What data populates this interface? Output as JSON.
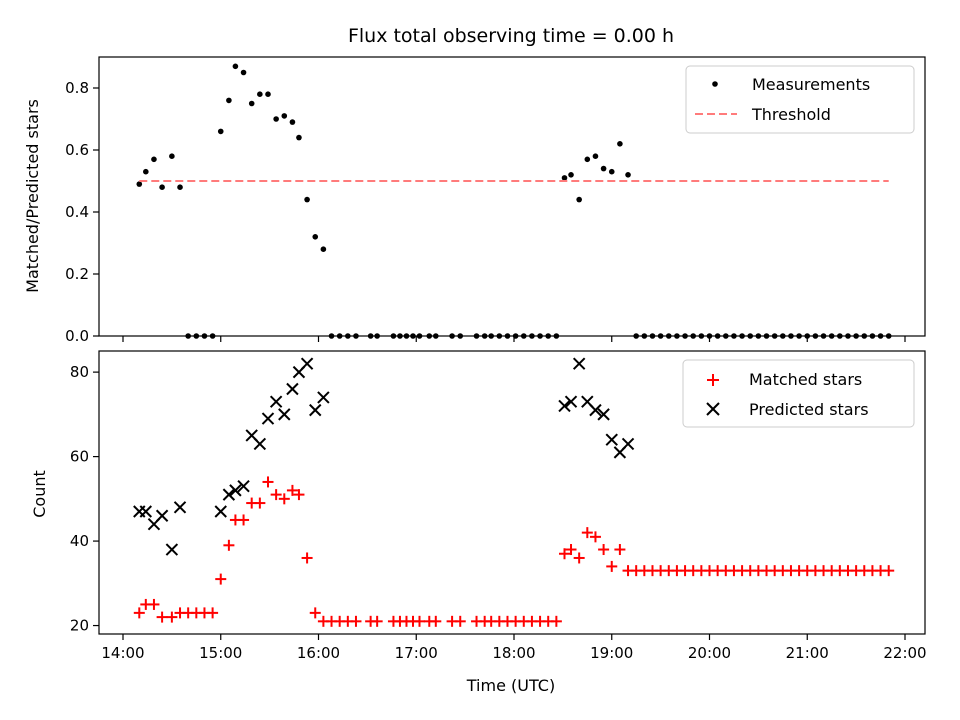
{
  "chart_data": [
    {
      "type": "scatter",
      "title": "Flux total observing time = 0.00 h",
      "ylabel": "Matched/Predicted stars",
      "xlabel": "",
      "xlim": [
        "14:00",
        "22:00"
      ],
      "ylim": [
        0,
        0.9
      ],
      "ytick_values": [
        0.0,
        0.2,
        0.4,
        0.6,
        0.8
      ],
      "ytick_labels": [
        "0.0",
        "0.2",
        "0.4",
        "0.6",
        "0.8"
      ],
      "grid": false,
      "legend_position": "top-right",
      "series": [
        {
          "name": "Measurements",
          "kind": "scatter",
          "marker": "dot",
          "color": "#000000",
          "x": [
            "14:10",
            "14:14",
            "14:19",
            "14:24",
            "14:30",
            "14:35",
            "14:40",
            "14:45",
            "14:50",
            "14:55",
            "15:00",
            "15:05",
            "15:09",
            "15:14",
            "15:19",
            "15:24",
            "15:29",
            "15:34",
            "15:39",
            "15:44",
            "15:48",
            "15:53",
            "15:58",
            "16:03",
            "16:08",
            "16:13",
            "16:18",
            "16:23",
            "16:32",
            "16:36",
            "16:46",
            "16:50",
            "16:54",
            "16:58",
            "17:02",
            "17:08",
            "17:12",
            "17:22",
            "17:27",
            "17:37",
            "17:42",
            "17:46",
            "17:51",
            "17:56",
            "18:01",
            "18:06",
            "18:11",
            "18:16",
            "18:21",
            "18:26",
            "18:31",
            "18:35",
            "18:40",
            "18:45",
            "18:50",
            "18:55",
            "19:00",
            "19:05",
            "19:10",
            "19:15",
            "19:20",
            "19:25",
            "19:30",
            "19:35",
            "19:40",
            "19:45",
            "19:50",
            "19:55",
            "20:00",
            "20:05",
            "20:10",
            "20:15",
            "20:20",
            "20:25",
            "20:30",
            "20:35",
            "20:40",
            "20:45",
            "20:50",
            "20:55",
            "21:00",
            "21:05",
            "21:10",
            "21:15",
            "21:20",
            "21:25",
            "21:30",
            "21:35",
            "21:40",
            "21:45",
            "21:50"
          ],
          "y": [
            0.49,
            0.53,
            0.57,
            0.48,
            0.58,
            0.48,
            0,
            0,
            0,
            0,
            0.66,
            0.76,
            0.87,
            0.85,
            0.75,
            0.78,
            0.78,
            0.7,
            0.71,
            0.69,
            0.64,
            0.44,
            0.32,
            0.28,
            0,
            0,
            0,
            0,
            0,
            0,
            0,
            0,
            0,
            0,
            0,
            0,
            0,
            0,
            0,
            0,
            0,
            0,
            0,
            0,
            0,
            0,
            0,
            0,
            0,
            0,
            0.51,
            0.52,
            0.44,
            0.57,
            0.58,
            0.54,
            0.53,
            0.62,
            0.52,
            0,
            0,
            0,
            0,
            0,
            0,
            0,
            0,
            0,
            0,
            0,
            0,
            0,
            0,
            0,
            0,
            0,
            0,
            0,
            0,
            0,
            0,
            0,
            0,
            0,
            0,
            0,
            0,
            0,
            0,
            0,
            0
          ]
        },
        {
          "name": "Threshold",
          "kind": "line",
          "style": "dashed",
          "color": "#ff7b7b",
          "x": [
            "14:10",
            "21:50"
          ],
          "y": [
            0.5,
            0.5
          ]
        }
      ]
    },
    {
      "type": "scatter",
      "title": "",
      "ylabel": "Count",
      "xlabel": "Time (UTC)",
      "xlim": [
        "14:00",
        "22:00"
      ],
      "ylim": [
        18,
        85
      ],
      "ytick_values": [
        20,
        40,
        60,
        80
      ],
      "ytick_labels": [
        "20",
        "40",
        "60",
        "80"
      ],
      "xtick_values": [
        "14:00",
        "15:00",
        "16:00",
        "17:00",
        "18:00",
        "19:00",
        "20:00",
        "21:00",
        "22:00"
      ],
      "xtick_labels": [
        "14:00",
        "15:00",
        "16:00",
        "17:00",
        "18:00",
        "19:00",
        "20:00",
        "21:00",
        "22:00"
      ],
      "grid": false,
      "legend_position": "top-right",
      "series": [
        {
          "name": "Matched stars",
          "kind": "scatter",
          "marker": "plus",
          "color": "#ff0000",
          "x": [
            "14:10",
            "14:14",
            "14:19",
            "14:24",
            "14:30",
            "14:35",
            "14:40",
            "14:45",
            "14:50",
            "14:55",
            "15:00",
            "15:05",
            "15:09",
            "15:14",
            "15:19",
            "15:24",
            "15:29",
            "15:34",
            "15:39",
            "15:44",
            "15:48",
            "15:53",
            "15:58",
            "16:03",
            "16:08",
            "16:13",
            "16:18",
            "16:23",
            "16:32",
            "16:36",
            "16:46",
            "16:50",
            "16:54",
            "16:58",
            "17:02",
            "17:08",
            "17:12",
            "17:22",
            "17:27",
            "17:37",
            "17:42",
            "17:46",
            "17:51",
            "17:56",
            "18:01",
            "18:06",
            "18:11",
            "18:16",
            "18:21",
            "18:26",
            "18:31",
            "18:35",
            "18:40",
            "18:45",
            "18:50",
            "18:55",
            "19:00",
            "19:05",
            "19:10",
            "19:15",
            "19:20",
            "19:25",
            "19:30",
            "19:35",
            "19:40",
            "19:45",
            "19:50",
            "19:55",
            "20:00",
            "20:05",
            "20:10",
            "20:15",
            "20:20",
            "20:25",
            "20:30",
            "20:35",
            "20:40",
            "20:45",
            "20:50",
            "20:55",
            "21:00",
            "21:05",
            "21:10",
            "21:15",
            "21:20",
            "21:25",
            "21:30",
            "21:35",
            "21:40",
            "21:45",
            "21:50"
          ],
          "y": [
            23,
            25,
            25,
            22,
            22,
            23,
            23,
            23,
            23,
            23,
            31,
            39,
            45,
            45,
            49,
            49,
            54,
            51,
            50,
            52,
            51,
            36,
            23,
            21,
            21,
            21,
            21,
            21,
            21,
            21,
            21,
            21,
            21,
            21,
            21,
            21,
            21,
            21,
            21,
            21,
            21,
            21,
            21,
            21,
            21,
            21,
            21,
            21,
            21,
            21,
            37,
            38,
            36,
            42,
            41,
            38,
            34,
            38,
            33,
            33,
            33,
            33,
            33,
            33,
            33,
            33,
            33,
            33,
            33,
            33,
            33,
            33,
            33,
            33,
            33,
            33,
            33,
            33,
            33,
            33,
            33,
            33,
            33,
            33,
            33,
            33,
            33,
            33,
            33,
            33,
            33
          ]
        },
        {
          "name": "Predicted stars",
          "kind": "scatter",
          "marker": "x",
          "color": "#000000",
          "x": [
            "14:10",
            "14:14",
            "14:19",
            "14:24",
            "14:30",
            "14:35",
            "15:00",
            "15:05",
            "15:09",
            "15:14",
            "15:19",
            "15:24",
            "15:29",
            "15:34",
            "15:39",
            "15:44",
            "15:48",
            "15:53",
            "15:58",
            "16:03",
            "18:31",
            "18:35",
            "18:40",
            "18:45",
            "18:50",
            "18:55",
            "19:00",
            "19:05",
            "19:10"
          ],
          "y": [
            47,
            47,
            44,
            46,
            38,
            48,
            47,
            51,
            52,
            53,
            65,
            63,
            69,
            73,
            70,
            76,
            80,
            82,
            71,
            74,
            72,
            73,
            82,
            73,
            71,
            70,
            64,
            61,
            63
          ]
        }
      ]
    }
  ]
}
